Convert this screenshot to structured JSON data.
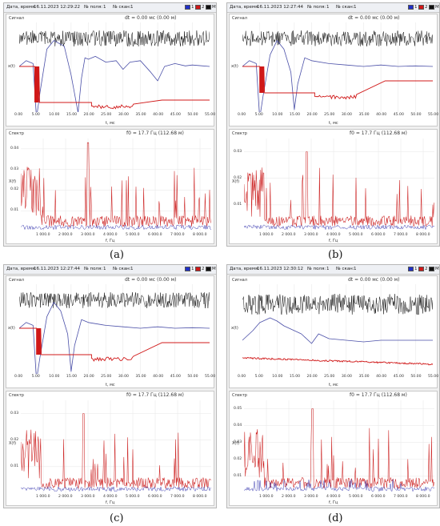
{
  "panels": [
    {
      "letter": "(a)",
      "caption": "(a)",
      "date_label": "Дата, время:",
      "date_value": "16.11.2023  12:29:22",
      "field_label": "№ поля:",
      "field_value": "1",
      "scan_label": "№ скан:",
      "scan_value": "1",
      "legend": [
        "1",
        "2",
        "M"
      ],
      "signal_title": "Сигнал",
      "dt_text": "dt = 0.00 мс  (0.00 м)",
      "signal_ylabel": "x(t)",
      "signal_xlabel": "t, мс",
      "signal_xticks": [
        "0.00",
        "5.00",
        "10.00",
        "15.00",
        "20.00",
        "25.00",
        "30.00",
        "35.00",
        "40.00",
        "45.00",
        "50.00",
        "55.00"
      ],
      "spectrum_title": "Спектр",
      "f0_text": "f0 = 17.7 Гц  (112.68 м)",
      "spectrum_ylabel": "X(f)",
      "spectrum_xlabel": "f, Гц",
      "spectrum_xticks": [
        "1 000.0",
        "2 000.0",
        "3 000.0",
        "4 000.0",
        "5 000.0",
        "6 000.0",
        "7 000.0",
        "8 000.0"
      ],
      "spectrum_yticks": [
        "0.04",
        "0.03",
        "0.02",
        "0.01"
      ]
    },
    {
      "letter": "(b)",
      "caption": "(b)",
      "date_label": "Дата, время:",
      "date_value": "16.11.2023  12:27:44",
      "field_label": "№ поля:",
      "field_value": "1",
      "scan_label": "№ скан:",
      "scan_value": "1",
      "legend": [
        "1",
        "2",
        "M"
      ],
      "signal_title": "Сигнал",
      "dt_text": "dt = 0.00 мс  (0.00 м)",
      "signal_ylabel": "x(t)",
      "signal_xlabel": "t, мс",
      "signal_xticks": [
        "0.00",
        "5.00",
        "10.00",
        "15.00",
        "20.00",
        "25.00",
        "30.00",
        "35.00",
        "40.00",
        "45.00",
        "50.00",
        "55.00"
      ],
      "spectrum_title": "Спектр",
      "f0_text": "f0 = 17.7 Гц  (112.68 м)",
      "spectrum_ylabel": "X(f)",
      "spectrum_xlabel": "f, Гц",
      "spectrum_xticks": [
        "1 000.0",
        "2 000.0",
        "3 000.0",
        "4 000.0",
        "5 000.0",
        "6 000.0",
        "7 000.0",
        "8 000.0"
      ],
      "spectrum_yticks": [
        "0.03",
        "0.02",
        "0.01"
      ]
    },
    {
      "letter": "(c)",
      "caption": "(c)",
      "date_label": "Дата, время:",
      "date_value": "16.11.2023  12:27:44",
      "field_label": "№ поля:",
      "field_value": "1",
      "scan_label": "№ скан:",
      "scan_value": "1",
      "legend": [
        "1",
        "2",
        "M"
      ],
      "signal_title": "Сигнал",
      "dt_text": "dt = 0.00 мс  (0.00 м)",
      "signal_ylabel": "x(t)",
      "signal_xlabel": "t, мс",
      "signal_xticks": [
        "0.00",
        "5.00",
        "10.00",
        "15.00",
        "20.00",
        "25.00",
        "30.00",
        "35.00",
        "40.00",
        "45.00",
        "50.00",
        "55.00"
      ],
      "spectrum_title": "Спектр",
      "f0_text": "f0 = 17.7 Гц  (112.68 м)",
      "spectrum_ylabel": "X(f)",
      "spectrum_xlabel": "f, Гц",
      "spectrum_xticks": [
        "1 000.0",
        "2 000.0",
        "3 000.0",
        "4 000.0",
        "5 000.0",
        "6 000.0",
        "7 000.0",
        "8 000.0"
      ],
      "spectrum_yticks": [
        "0.03",
        "0.02",
        "0.01"
      ]
    },
    {
      "letter": "(d)",
      "caption": "(d)",
      "date_label": "Дата, время:",
      "date_value": "16.11.2023  12:30:12",
      "field_label": "№ поля:",
      "field_value": "1",
      "scan_label": "№ скан:",
      "scan_value": "1",
      "legend": [
        "1",
        "2",
        "M"
      ],
      "signal_title": "Сигнал",
      "dt_text": "dt = 0.00 мс  (0.00 м)",
      "signal_ylabel": "x(t)",
      "signal_xlabel": "t, мс",
      "signal_xticks": [
        "0.00",
        "5.00",
        "10.00",
        "15.00",
        "20.00",
        "25.00",
        "30.00",
        "35.00",
        "40.00",
        "45.00",
        "50.00",
        "55.00"
      ],
      "spectrum_title": "Спектр",
      "f0_text": "f0 = 17.7 Гц  (112.68 м)",
      "spectrum_ylabel": "X(f)",
      "spectrum_xlabel": "f, Гц",
      "spectrum_xticks": [
        "1 000.0",
        "2 000.0",
        "3 000.0",
        "4 000.0",
        "5 000.0",
        "6 000.0",
        "7 000.0",
        "8 000.0"
      ],
      "spectrum_yticks": [
        "0.05",
        "0.04",
        "0.03",
        "0.02",
        "0.01"
      ]
    }
  ],
  "colors": {
    "noise": "#111111",
    "signal": "#4a4fa8",
    "marker": "#d01818",
    "spectrum_red": "#cc2020",
    "spectrum_blue": "#3a3ab0",
    "legend1": "#2030c8",
    "legend2": "#d01818",
    "legendM": "#111111"
  },
  "chart_data": [
    {
      "type": "line",
      "panel": "(a)",
      "signal": {
        "xlim": [
          0,
          55
        ],
        "series": [
          {
            "name": "1",
            "description": "noisy reference trace"
          },
          {
            "name": "2",
            "x": [
              0,
              2,
              4,
              5,
              6,
              8,
              10,
              13,
              15,
              17,
              18,
              19,
              20,
              22,
              25,
              28,
              30,
              32,
              35,
              38,
              40,
              42,
              45,
              48,
              50,
              55
            ],
            "values": [
              0,
              0.2,
              0.1,
              -1.8,
              -0.9,
              0.6,
              0.9,
              0.7,
              -0.3,
              -1.6,
              -0.4,
              0.3,
              0.25,
              0.35,
              0.15,
              0.2,
              -0.1,
              0.15,
              0.2,
              -0.2,
              -0.5,
              0.0,
              0.1,
              0.02,
              0.05,
              0.0
            ]
          }
        ]
      },
      "spectrum": {
        "xlim": [
          0,
          8500
        ],
        "ylim": [
          0,
          0.045
        ],
        "peak_f": 3000,
        "peak_v": 0.043
      }
    },
    {
      "type": "line",
      "panel": "(b)",
      "signal": {
        "xlim": [
          0,
          55
        ],
        "series": [
          {
            "name": "2",
            "x": [
              0,
              2,
              4,
              5,
              6,
              8,
              10,
              12,
              14,
              15,
              16,
              18,
              20,
              25,
              30,
              35,
              40,
              45,
              50,
              55
            ],
            "values": [
              0,
              0.2,
              0.1,
              -1.8,
              -1.0,
              0.4,
              0.9,
              0.6,
              -0.2,
              -1.5,
              -0.6,
              0.3,
              0.2,
              0.1,
              0.05,
              0.0,
              0.05,
              0.0,
              0.02,
              0.0
            ]
          }
        ]
      },
      "spectrum": {
        "xlim": [
          0,
          8500
        ],
        "ylim": [
          0,
          0.035
        ],
        "peak_f": 2800,
        "peak_v": 0.03
      }
    },
    {
      "type": "line",
      "panel": "(c)",
      "signal": {
        "xlim": [
          0,
          55
        ],
        "series": [
          {
            "name": "2",
            "x": [
              0,
              2,
              4,
              5,
              6,
              8,
              10,
              12,
              14,
              15,
              16,
              18,
              20,
              25,
              30,
              35,
              40,
              45,
              50,
              55
            ],
            "values": [
              0,
              0.2,
              0.1,
              -1.8,
              -1.0,
              0.4,
              0.9,
              0.6,
              -0.2,
              -1.5,
              -0.6,
              0.3,
              0.2,
              0.1,
              0.05,
              0.0,
              0.05,
              0.0,
              0.02,
              0.0
            ]
          }
        ]
      },
      "spectrum": {
        "xlim": [
          0,
          8500
        ],
        "ylim": [
          0,
          0.035
        ],
        "peak_f": 2800,
        "peak_v": 0.03
      }
    },
    {
      "type": "line",
      "panel": "(d)",
      "signal": {
        "xlim": [
          0,
          55
        ],
        "series": [
          {
            "name": "2",
            "x": [
              0,
              3,
              5,
              8,
              10,
              12,
              15,
              17,
              20,
              22,
              25,
              30,
              35,
              40,
              45,
              50,
              55
            ],
            "values": [
              0,
              0.3,
              0.55,
              0.7,
              0.6,
              0.45,
              0.3,
              0.2,
              -0.1,
              0.2,
              0.05,
              0.0,
              -0.05,
              0.0,
              0.0,
              0.0,
              0.0
            ]
          }
        ]
      },
      "spectrum": {
        "xlim": [
          0,
          8500
        ],
        "ylim": [
          0,
          0.055
        ],
        "peak_f": 3050,
        "peak_v": 0.05
      }
    }
  ]
}
